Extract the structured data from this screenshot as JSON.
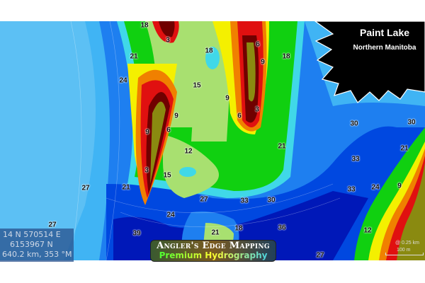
{
  "title": {
    "lake": "Paint Lake",
    "region": "Northern Manitoba"
  },
  "readout": {
    "zone_easting": "14 N  570514 E",
    "northing": "6153967 N",
    "distance_bearing": "640.2 km, 353 °M"
  },
  "logo": {
    "line1": "Angler's Edge Mapping",
    "line2": "Premium Hydrography"
  },
  "scale": {
    "zoom": "@ 0.25 km",
    "bar": "100 m"
  },
  "depth_labels": [
    "18",
    "3",
    "18",
    "6",
    "9",
    "18",
    "21",
    "24",
    "15",
    "9",
    "9",
    "6",
    "3",
    "6",
    "9",
    "12",
    "21",
    "30",
    "30",
    "21",
    "3",
    "15",
    "27",
    "21",
    "33",
    "9",
    "24",
    "33",
    "27",
    "30",
    "24",
    "27",
    "39",
    "21",
    "18",
    "36",
    "12",
    "27"
  ],
  "colors": {
    "deep": "#0018b8",
    "blue": "#0048e0",
    "mid_blue": "#1e7ff0",
    "light_blue": "#40b4f4",
    "cyan": "#40d8e8",
    "green": "#10d010",
    "light_green": "#a8e070",
    "yellow": "#f4f000",
    "orange": "#f08000",
    "red": "#e01010",
    "dark_red": "#700000",
    "land": "#8a8a10"
  }
}
